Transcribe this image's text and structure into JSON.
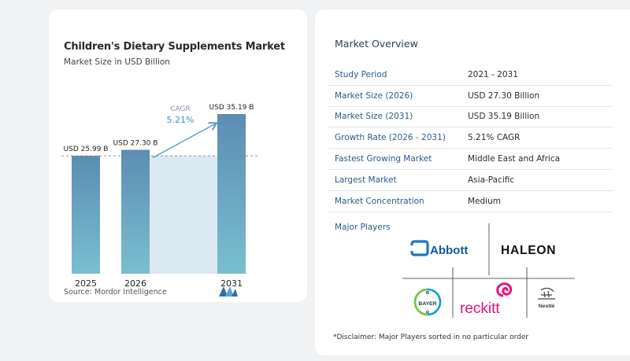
{
  "chart_title": "Children's Dietary Supplements Market",
  "chart_subtitle": "Market Size in USD Billion",
  "chart_data": {
    "type": "bar",
    "categories": [
      "2025",
      "2026",
      "2031"
    ],
    "values": [
      25.99,
      27.3,
      35.19
    ],
    "value_labels": [
      "USD 25.99 B",
      "USD 27.30 B",
      "USD 35.19 B"
    ],
    "title": "Children's Dietary Supplements Market",
    "subtitle": "Market Size in USD Billion",
    "cagr_label": "CAGR",
    "cagr_value": "5.21%",
    "colors": {
      "bar_top": "#5b8db3",
      "bar_bottom": "#79bfd0",
      "band": "#dbeaf2",
      "arrow": "#5a9bd0"
    }
  },
  "source": {
    "label": "Source:",
    "name": "Mordor Intelligence"
  },
  "overview": {
    "title": "Market Overview",
    "rows": [
      {
        "key": "Study Period",
        "value": "2021 - 2031"
      },
      {
        "key": "Market Size (2026)",
        "value": "USD 27.30 Billion"
      },
      {
        "key": "Market Size (2031)",
        "value": "USD 35.19 Billion"
      },
      {
        "key": "Growth Rate (2026 - 2031)",
        "value": "5.21% CAGR"
      },
      {
        "key": "Fastest Growing Market",
        "value": "Middle East and Africa"
      },
      {
        "key": "Largest Market",
        "value": "Asia-Pacific"
      },
      {
        "key": "Market Concentration",
        "value": "Medium"
      }
    ]
  },
  "players": {
    "title": "Major Players",
    "logos": [
      "Abbott",
      "HALEON",
      "BAYER",
      "reckitt",
      "Nestlé"
    ]
  },
  "disclaimer": "*Disclaimer: Major Players sorted in no particular order"
}
